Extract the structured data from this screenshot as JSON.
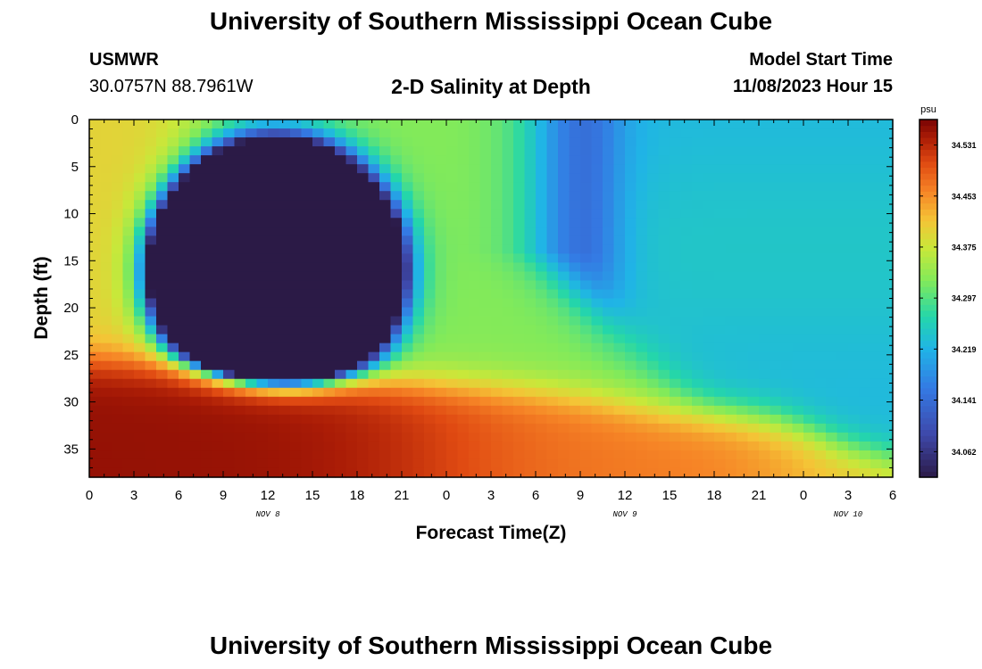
{
  "page": {
    "top_title": "University of Southern Mississippi Ocean Cube",
    "bottom_title": "University of Southern Mississippi Ocean Cube"
  },
  "header": {
    "station": "USMWR",
    "coords": "30.0757N  88.7961W",
    "center_title": "2-D Salinity at Depth",
    "model_start_label": "Model Start Time",
    "model_start_value": "11/08/2023 Hour 15"
  },
  "chart_data": {
    "type": "heatmap",
    "title": "2-D Salinity at Depth",
    "xlabel": "Forecast Time(Z)",
    "ylabel": "Depth (ft)",
    "x_hours": [
      0,
      54
    ],
    "xlim": [
      0,
      54
    ],
    "ylim": [
      0,
      38
    ],
    "y_inverted": true,
    "x_tick_labels": [
      "0",
      "3",
      "6",
      "9",
      "12",
      "15",
      "18",
      "21",
      "0",
      "3",
      "6",
      "9",
      "12",
      "15",
      "18",
      "21",
      "0",
      "3",
      "6"
    ],
    "y_ticks": [
      0,
      5,
      10,
      15,
      20,
      25,
      30,
      35
    ],
    "day_labels": [
      {
        "text": "NOV 8",
        "hour": 12
      },
      {
        "text": "NOV 9",
        "hour": 36
      },
      {
        "text": "NOV 10",
        "hour": 51
      }
    ],
    "colorbar": {
      "unit": "psu",
      "min": 34.023,
      "max": 34.57,
      "ticks": [
        34.062,
        34.141,
        34.219,
        34.297,
        34.375,
        34.453,
        34.531
      ]
    },
    "colors": {
      "min": "#2b1a46",
      "max": "#7a0403"
    }
  }
}
